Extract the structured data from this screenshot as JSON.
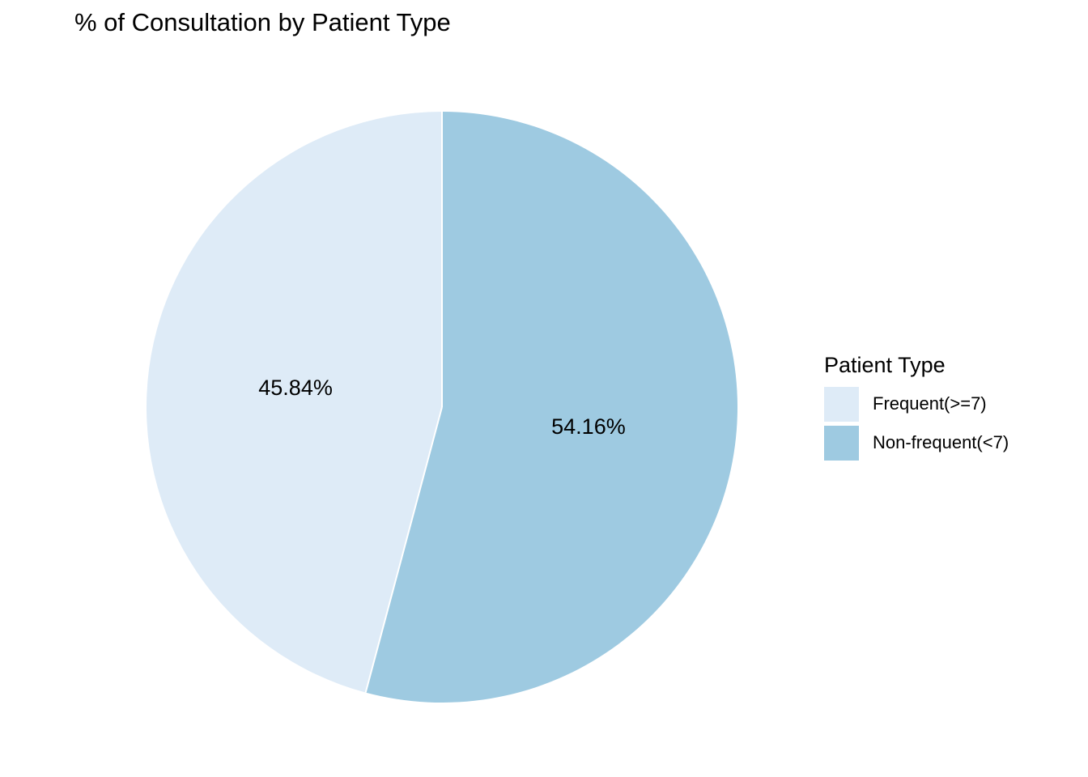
{
  "chart_data": {
    "type": "pie",
    "title": "% of Consultation by Patient Type",
    "legend_title": "Patient Type",
    "legend_position": "right",
    "slices": [
      {
        "label": "Frequent(>=7)",
        "value": 45.84,
        "value_label": "45.84%",
        "color": "#deebf7"
      },
      {
        "label": "Non-frequent(<7)",
        "value": 54.16,
        "value_label": "54.16%",
        "color": "#9ecae1"
      }
    ]
  }
}
